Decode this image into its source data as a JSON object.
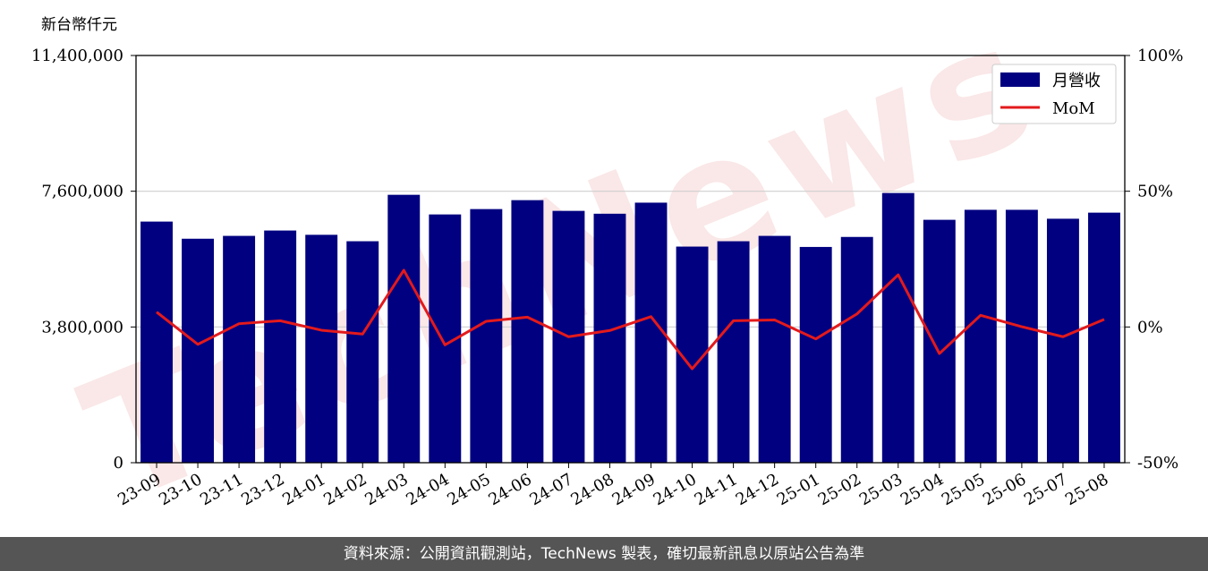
{
  "chart_data": {
    "type": "bar",
    "unit_label": "新台幣仟元",
    "categories": [
      "23-09",
      "23-10",
      "23-11",
      "23-12",
      "24-01",
      "24-02",
      "24-03",
      "24-04",
      "24-05",
      "24-06",
      "24-07",
      "24-08",
      "24-09",
      "24-10",
      "24-11",
      "24-12",
      "25-01",
      "25-02",
      "25-03",
      "25-04",
      "25-05",
      "25-06",
      "25-07",
      "25-08"
    ],
    "series": [
      {
        "name": "月營收",
        "axis": "left",
        "type": "bar",
        "color": "#000080",
        "values": [
          6750000,
          6270000,
          6350000,
          6500000,
          6380000,
          6200000,
          7500000,
          6950000,
          7100000,
          7350000,
          7050000,
          6970000,
          7280000,
          6050000,
          6200000,
          6350000,
          6040000,
          6320000,
          7550000,
          6800000,
          7080000,
          7080000,
          6830000,
          7000000
        ]
      },
      {
        "name": "MoM",
        "axis": "right",
        "type": "line",
        "color": "#e31a1c",
        "values": [
          5.5,
          -6.4,
          1.2,
          2.3,
          -1.2,
          -2.6,
          20.9,
          -6.6,
          2.1,
          3.6,
          -3.6,
          -1.3,
          3.8,
          -15.4,
          2.3,
          2.6,
          -4.4,
          4.8,
          19.2,
          -9.8,
          4.3,
          0.1,
          -3.6,
          2.8
        ]
      }
    ],
    "y_left": {
      "ticks": [
        "0",
        "3,800,000",
        "7,600,000",
        "11,400,000"
      ],
      "min": 0,
      "max": 11400000
    },
    "y_right": {
      "ticks": [
        "-50%",
        "0%",
        "50%",
        "100%"
      ],
      "min": -50,
      "max": 100
    },
    "grid": "horizontal",
    "legend": "top-right"
  },
  "footer": {
    "text": "資料來源：公開資訊觀測站，TechNews 製表，確切最新訊息以原站公告為準"
  }
}
